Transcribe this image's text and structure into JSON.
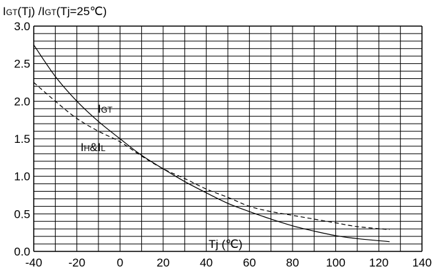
{
  "chart_data": {
    "type": "line",
    "title_parts": {
      "i1": "I",
      "gt1": "GT",
      "mid": "(Tj) /I",
      "gt2": "GT",
      "end": "(Tj=25℃)"
    },
    "xlabel": "Tj (℃)",
    "xlim": [
      -40,
      140
    ],
    "ylim": [
      0.0,
      3.0
    ],
    "x_ticks": [
      "-40",
      "-20",
      "0",
      "20",
      "40",
      "60",
      "80",
      "100",
      "120",
      "140"
    ],
    "y_ticks": [
      "0.0",
      "0.5",
      "1.0",
      "1.5",
      "2.0",
      "2.5",
      "3.0"
    ],
    "grid": true,
    "series": [
      {
        "name": "IGT",
        "label_main": "I",
        "label_sub": "GT",
        "style": "solid",
        "x": [
          -40,
          -30,
          -20,
          -10,
          0,
          10,
          20,
          30,
          40,
          50,
          60,
          70,
          80,
          90,
          100,
          110,
          125
        ],
        "y": [
          2.75,
          2.33,
          2.0,
          1.73,
          1.5,
          1.28,
          1.1,
          0.93,
          0.78,
          0.64,
          0.53,
          0.43,
          0.34,
          0.27,
          0.21,
          0.17,
          0.13
        ]
      },
      {
        "name": "IH&IL",
        "label_parts": [
          "I",
          "H",
          "&I",
          "L"
        ],
        "style": "dashed",
        "x": [
          -40,
          -30,
          -20,
          -10,
          0,
          10,
          20,
          30,
          40,
          50,
          60,
          70,
          80,
          90,
          100,
          110,
          125
        ],
        "y": [
          2.25,
          2.0,
          1.77,
          1.6,
          1.46,
          1.27,
          1.1,
          0.97,
          0.83,
          0.72,
          0.6,
          0.53,
          0.48,
          0.43,
          0.38,
          0.33,
          0.29
        ]
      }
    ]
  }
}
